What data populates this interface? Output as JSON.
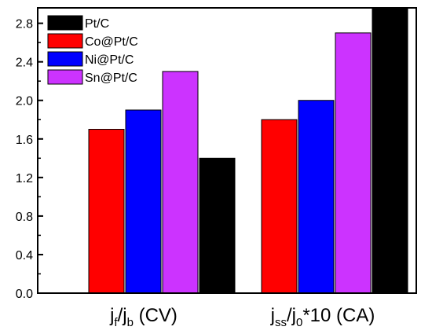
{
  "chart_data": {
    "type": "bar",
    "title": "",
    "xlabel": "",
    "ylabel": "",
    "ylim": [
      0,
      2.96
    ],
    "yticks": [
      "0.0",
      "0.4",
      "0.8",
      "1.2",
      "1.6",
      "2.0",
      "2.4",
      "2.8"
    ],
    "grid": false,
    "legend_position": "top-left",
    "categories": [
      {
        "main": "j",
        "sub1": "f",
        "mid": "/j",
        "sub2": "b",
        "tail": " (CV)"
      },
      {
        "main": "j",
        "sub1": "ss",
        "mid": "/j",
        "sub2": "0",
        "tail": "*10  (CA)"
      }
    ],
    "series": [
      {
        "name": "Pt/C",
        "color": "#000000",
        "values": [
          1.4,
          3.0
        ]
      },
      {
        "name": "Co@Pt/C",
        "color": "#ff0000",
        "values": [
          1.7,
          1.8
        ]
      },
      {
        "name": "Ni@Pt/C",
        "color": "#0000ff",
        "values": [
          1.9,
          2.0
        ]
      },
      {
        "name": "Sn@Pt/C",
        "color": "#cc33ff",
        "values": [
          2.3,
          2.7
        ]
      }
    ]
  }
}
